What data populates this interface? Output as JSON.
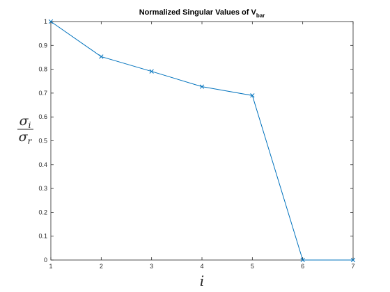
{
  "chart_data": {
    "type": "line",
    "title": "Normalized Singular Values of V",
    "title_subscript": "bar",
    "xlabel": "i",
    "ylabel_numerator": "σ",
    "ylabel_numerator_sub": "i",
    "ylabel_denominator": "σ",
    "ylabel_denominator_sub": "r",
    "xlim": [
      1,
      7
    ],
    "ylim": [
      0,
      1
    ],
    "xticks": [
      1,
      2,
      3,
      4,
      5,
      6,
      7
    ],
    "yticks": [
      0,
      0.1,
      0.2,
      0.3,
      0.4,
      0.5,
      0.6,
      0.7,
      0.8,
      0.9,
      1
    ],
    "grid": false,
    "marker": "x",
    "color": "#0072BD",
    "series": [
      {
        "x": [
          1,
          2,
          3,
          4,
          5,
          6,
          7
        ],
        "values": [
          1.0,
          0.853,
          0.791,
          0.727,
          0.69,
          0.0,
          0.0
        ]
      }
    ]
  }
}
